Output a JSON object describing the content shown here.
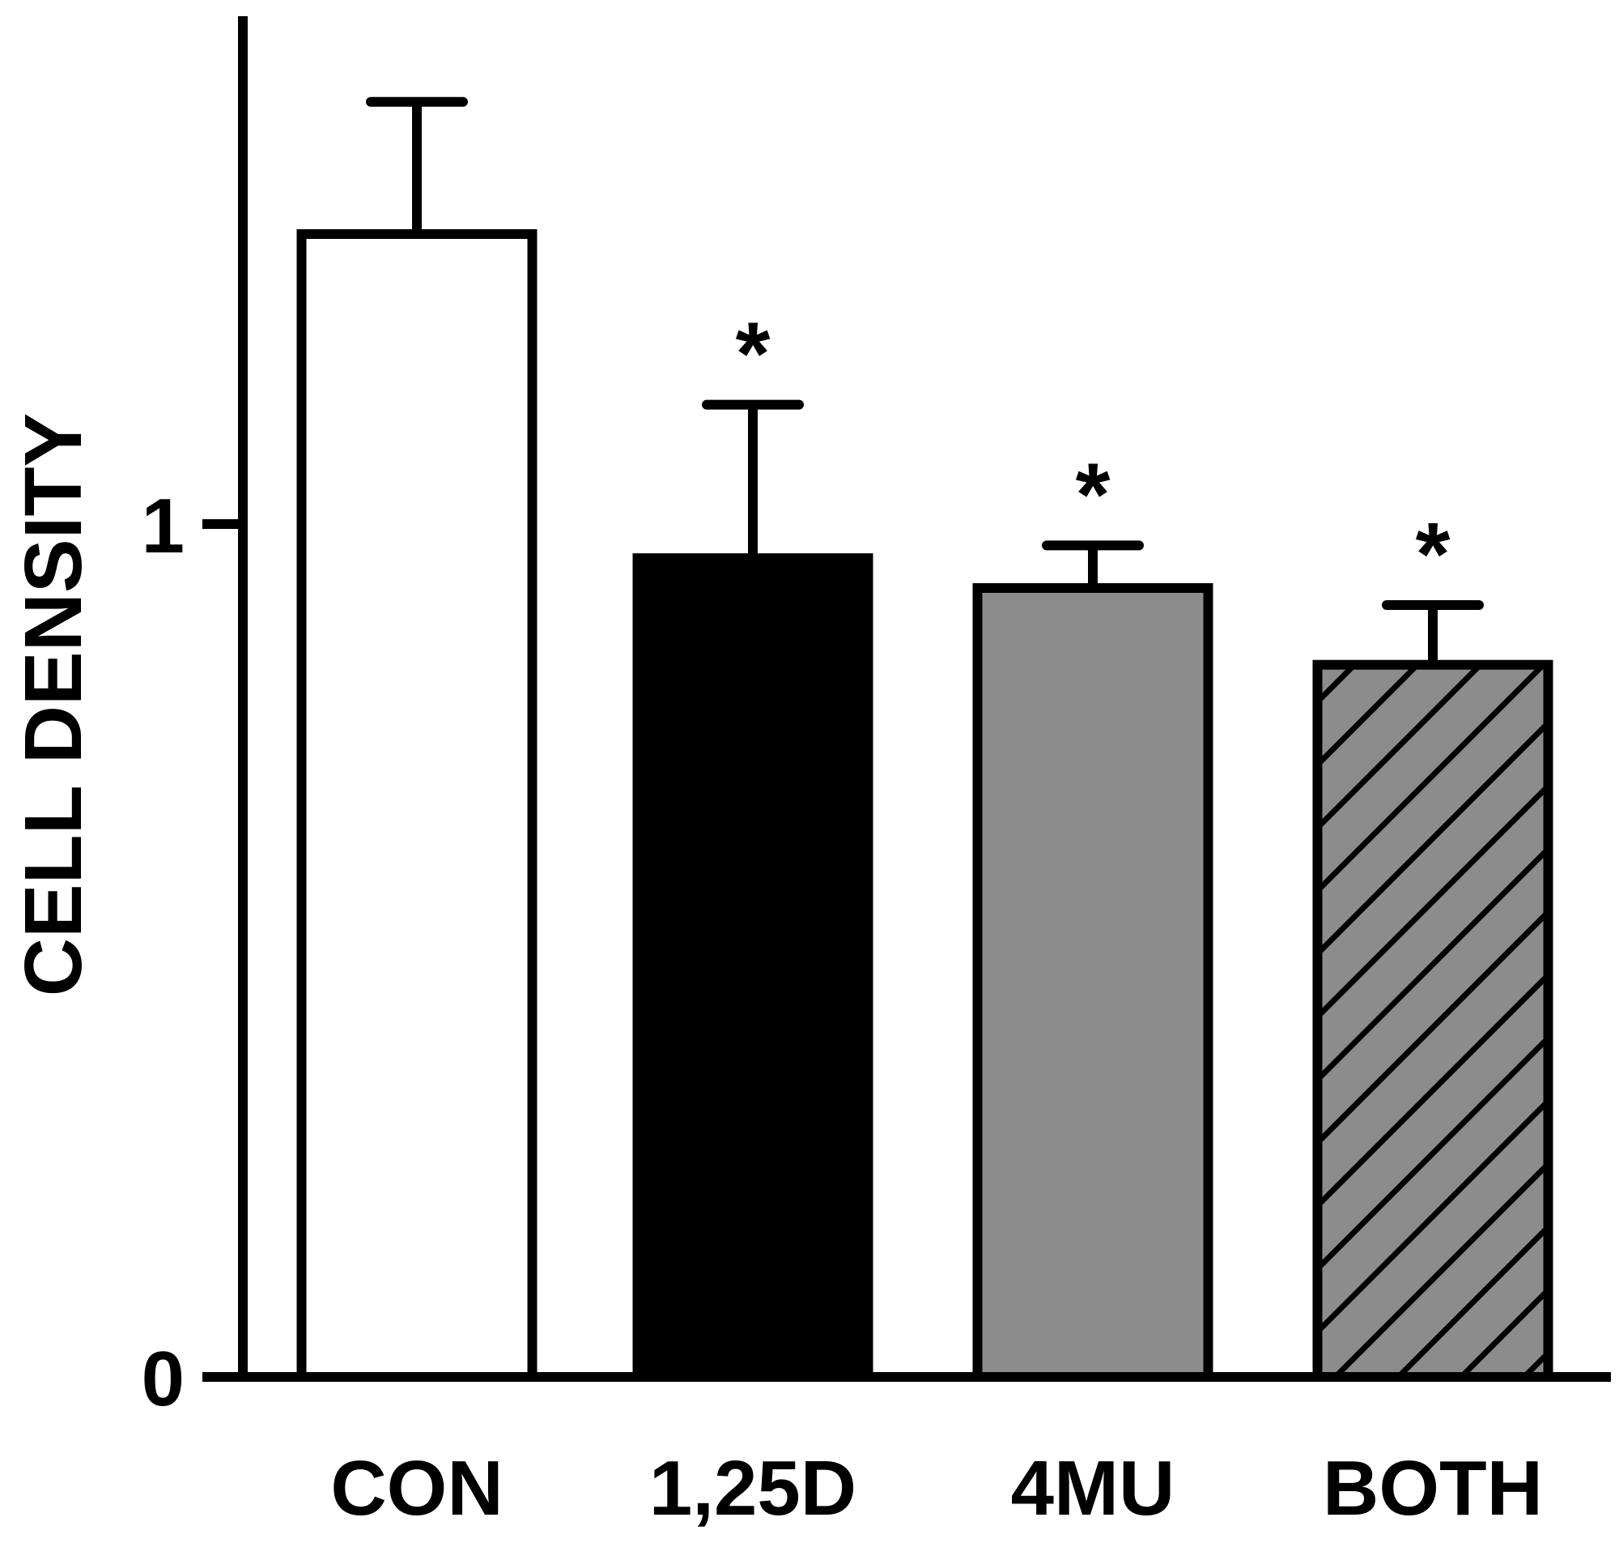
{
  "chart_data": {
    "type": "bar",
    "ylabel": "CELL DENSITY",
    "ylim": [
      0,
      1.55
    ],
    "yticks": [
      {
        "value": 0,
        "label": "0"
      },
      {
        "value": 1,
        "label": "1"
      }
    ],
    "categories": [
      "CON",
      "1,25D",
      "4MU",
      "BOTH"
    ],
    "values": [
      1.34,
      0.96,
      0.925,
      0.835
    ],
    "errors": [
      0.155,
      0.18,
      0.05,
      0.07
    ],
    "significance": [
      "",
      "*",
      "*",
      "*"
    ],
    "fills": [
      "#ffffff",
      "#000000",
      "#8c8c8c",
      "hatched-gray"
    ],
    "colors": {
      "axis": "#000000",
      "outline": "#000000",
      "gray": "#8c8c8c"
    }
  }
}
